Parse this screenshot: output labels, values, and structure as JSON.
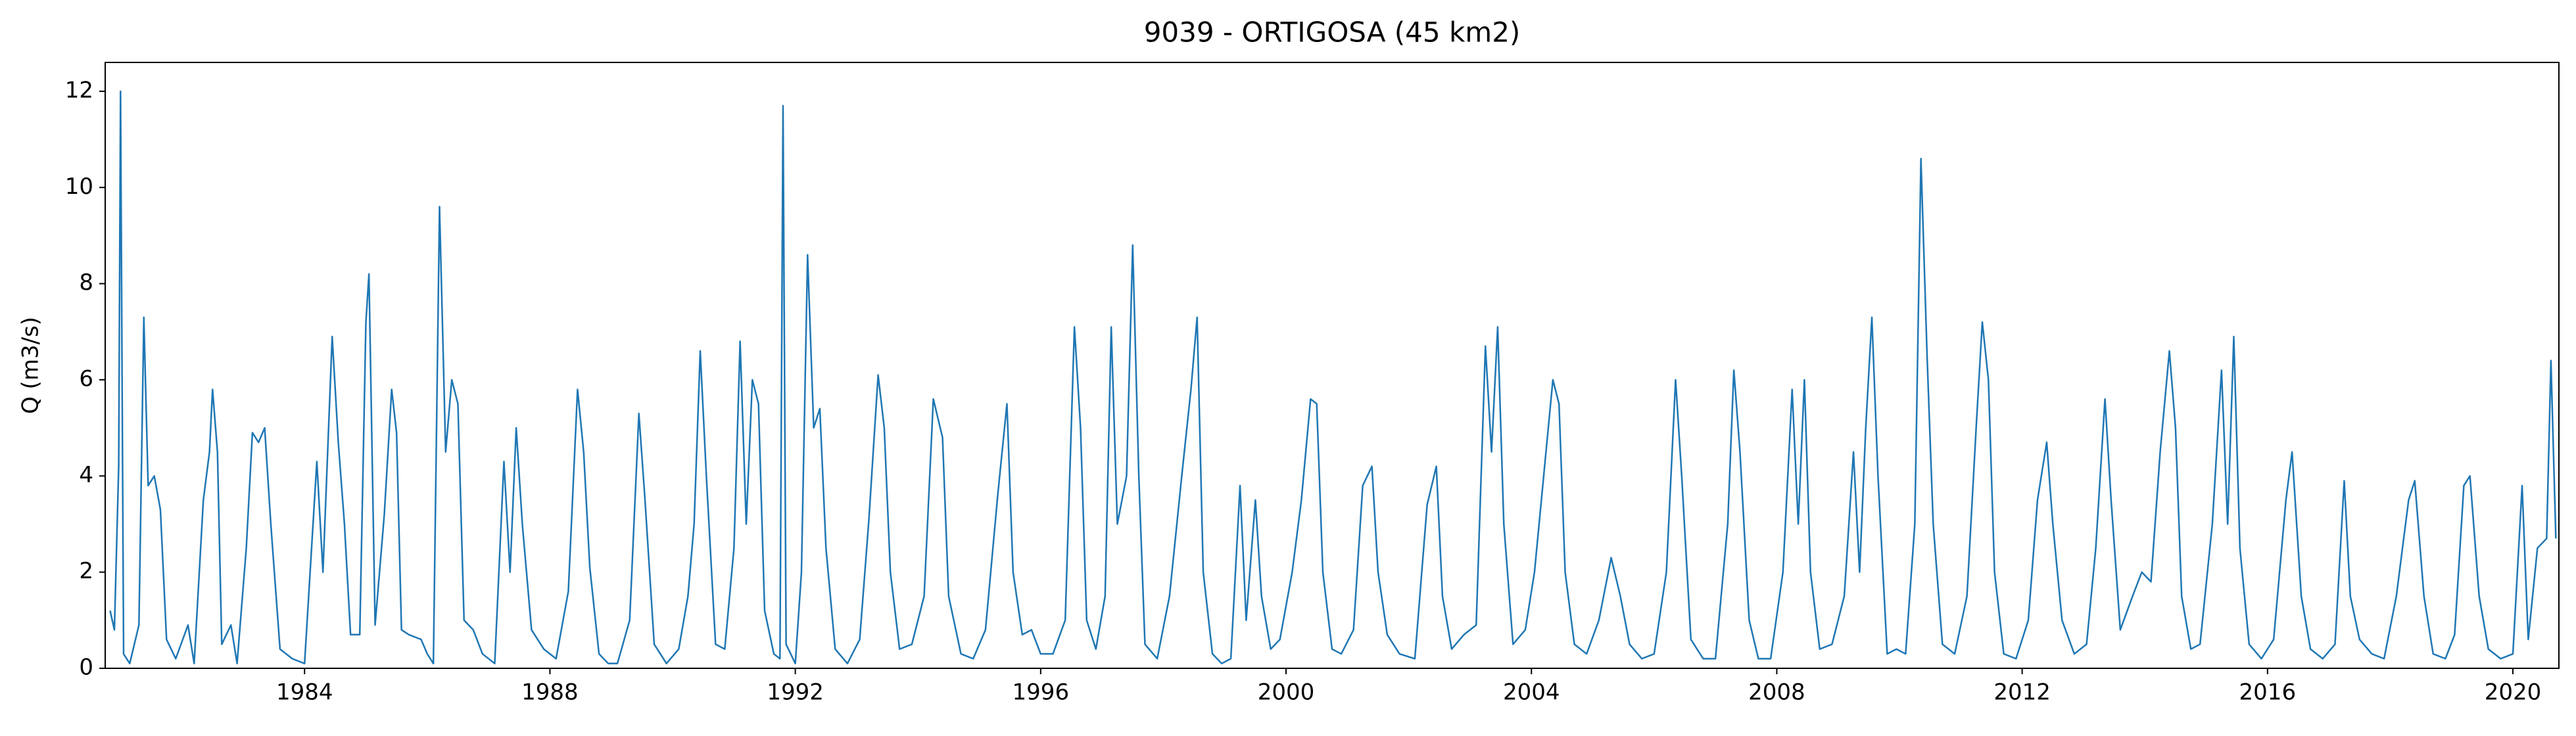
{
  "chart_data": {
    "type": "line",
    "title": "9039 - ORTIGOSA (45 km2)",
    "y_label": "Q (m3/s)",
    "color": "#1f77b4",
    "xlim": [
      1980.75,
      2020.75
    ],
    "xticks": [
      1984,
      1988,
      1992,
      1996,
      2000,
      2004,
      2008,
      2012,
      2016,
      2020
    ],
    "ylim": [
      0,
      12.6
    ],
    "yticks": [
      0,
      2,
      4,
      6,
      8,
      10,
      12
    ],
    "x": [
      1980.83,
      1980.9,
      1980.97,
      1981.0,
      1981.05,
      1981.15,
      1981.3,
      1981.38,
      1981.45,
      1981.55,
      1981.65,
      1981.75,
      1981.9,
      1982.1,
      1982.2,
      1982.35,
      1982.45,
      1982.5,
      1982.58,
      1982.65,
      1982.8,
      1982.9,
      1983.05,
      1983.15,
      1983.25,
      1983.35,
      1983.45,
      1983.6,
      1983.8,
      1984.0,
      1984.2,
      1984.3,
      1984.45,
      1984.55,
      1984.65,
      1984.75,
      1984.9,
      1985.0,
      1985.05,
      1985.15,
      1985.3,
      1985.42,
      1985.5,
      1985.58,
      1985.7,
      1985.9,
      1986.0,
      1986.1,
      1986.2,
      1986.3,
      1986.4,
      1986.5,
      1986.6,
      1986.75,
      1986.9,
      1987.1,
      1987.25,
      1987.35,
      1987.45,
      1987.55,
      1987.7,
      1987.9,
      1988.1,
      1988.3,
      1988.45,
      1988.55,
      1988.65,
      1988.8,
      1988.95,
      1989.1,
      1989.3,
      1989.45,
      1989.55,
      1989.7,
      1989.9,
      1990.1,
      1990.25,
      1990.35,
      1990.45,
      1990.55,
      1990.7,
      1990.85,
      1991.0,
      1991.1,
      1991.2,
      1991.3,
      1991.4,
      1991.5,
      1991.65,
      1991.75,
      1991.8,
      1991.85,
      1992.0,
      1992.1,
      1992.2,
      1992.3,
      1992.4,
      1992.5,
      1992.65,
      1992.85,
      1993.05,
      1993.2,
      1993.35,
      1993.45,
      1993.55,
      1993.7,
      1993.9,
      1994.1,
      1994.25,
      1994.4,
      1994.5,
      1994.7,
      1994.9,
      1995.1,
      1995.3,
      1995.45,
      1995.55,
      1995.7,
      1995.85,
      1996.0,
      1996.2,
      1996.4,
      1996.55,
      1996.65,
      1996.75,
      1996.9,
      1997.05,
      1997.15,
      1997.25,
      1997.4,
      1997.5,
      1997.6,
      1997.7,
      1997.9,
      1998.1,
      1998.3,
      1998.45,
      1998.55,
      1998.65,
      1998.8,
      1998.95,
      1999.1,
      1999.25,
      1999.35,
      1999.5,
      1999.6,
      1999.75,
      1999.9,
      2000.1,
      2000.25,
      2000.4,
      2000.5,
      2000.6,
      2000.75,
      2000.9,
      2001.1,
      2001.25,
      2001.4,
      2001.5,
      2001.65,
      2001.85,
      2002.1,
      2002.3,
      2002.45,
      2002.55,
      2002.7,
      2002.9,
      2003.1,
      2003.25,
      2003.35,
      2003.45,
      2003.55,
      2003.7,
      2003.9,
      2004.05,
      2004.2,
      2004.35,
      2004.45,
      2004.55,
      2004.7,
      2004.9,
      2005.1,
      2005.3,
      2005.45,
      2005.6,
      2005.8,
      2006.0,
      2006.2,
      2006.35,
      2006.45,
      2006.6,
      2006.8,
      2007.0,
      2007.2,
      2007.3,
      2007.4,
      2007.55,
      2007.7,
      2007.9,
      2008.1,
      2008.25,
      2008.35,
      2008.45,
      2008.55,
      2008.7,
      2008.9,
      2009.1,
      2009.25,
      2009.35,
      2009.45,
      2009.55,
      2009.65,
      2009.8,
      2009.95,
      2010.1,
      2010.25,
      2010.35,
      2010.45,
      2010.55,
      2010.7,
      2010.9,
      2011.1,
      2011.25,
      2011.35,
      2011.45,
      2011.55,
      2011.7,
      2011.9,
      2012.1,
      2012.25,
      2012.4,
      2012.5,
      2012.65,
      2012.85,
      2013.05,
      2013.2,
      2013.35,
      2013.45,
      2013.6,
      2013.8,
      2013.95,
      2014.1,
      2014.25,
      2014.4,
      2014.5,
      2014.6,
      2014.75,
      2014.9,
      2015.1,
      2015.25,
      2015.35,
      2015.45,
      2015.55,
      2015.7,
      2015.9,
      2016.1,
      2016.3,
      2016.4,
      2016.55,
      2016.7,
      2016.9,
      2017.1,
      2017.25,
      2017.35,
      2017.5,
      2017.7,
      2017.9,
      2018.1,
      2018.3,
      2018.4,
      2018.55,
      2018.7,
      2018.9,
      2019.05,
      2019.2,
      2019.3,
      2019.45,
      2019.6,
      2019.8,
      2020.0,
      2020.15,
      2020.25,
      2020.4,
      2020.55,
      2020.62,
      2020.7
    ],
    "values": [
      1.2,
      0.8,
      4.2,
      12.0,
      0.3,
      0.1,
      0.9,
      7.3,
      3.8,
      4.0,
      3.3,
      0.6,
      0.2,
      0.9,
      0.1,
      3.5,
      4.5,
      5.8,
      4.5,
      0.5,
      0.9,
      0.1,
      2.5,
      4.9,
      4.7,
      5.0,
      3.0,
      0.4,
      0.2,
      0.1,
      4.3,
      2.0,
      6.9,
      4.7,
      3.0,
      0.7,
      0.7,
      7.2,
      8.2,
      0.9,
      3.2,
      5.8,
      4.9,
      0.8,
      0.7,
      0.6,
      0.3,
      0.1,
      9.6,
      4.5,
      6.0,
      5.5,
      1.0,
      0.8,
      0.3,
      0.1,
      4.3,
      2.0,
      5.0,
      3.0,
      0.8,
      0.4,
      0.2,
      1.6,
      5.8,
      4.5,
      2.1,
      0.3,
      0.1,
      0.1,
      1.0,
      5.3,
      3.5,
      0.5,
      0.1,
      0.4,
      1.5,
      3.0,
      6.6,
      4.0,
      0.5,
      0.4,
      2.5,
      6.8,
      3.0,
      6.0,
      5.5,
      1.2,
      0.3,
      0.2,
      11.7,
      0.5,
      0.1,
      2.0,
      8.6,
      5.0,
      5.4,
      2.5,
      0.4,
      0.1,
      0.6,
      3.1,
      6.1,
      5.0,
      2.0,
      0.4,
      0.5,
      1.5,
      5.6,
      4.8,
      1.5,
      0.3,
      0.2,
      0.8,
      3.6,
      5.5,
      2.0,
      0.7,
      0.8,
      0.3,
      0.3,
      1.0,
      7.1,
      5.0,
      1.0,
      0.4,
      1.5,
      7.1,
      3.0,
      4.0,
      8.8,
      4.0,
      0.5,
      0.2,
      1.5,
      4.0,
      5.8,
      7.3,
      2.0,
      0.3,
      0.1,
      0.2,
      3.8,
      1.0,
      3.5,
      1.5,
      0.4,
      0.6,
      2.0,
      3.5,
      5.6,
      5.5,
      2.0,
      0.4,
      0.3,
      0.8,
      3.8,
      4.2,
      2.0,
      0.7,
      0.3,
      0.2,
      3.4,
      4.2,
      1.5,
      0.4,
      0.7,
      0.9,
      6.7,
      4.5,
      7.1,
      3.0,
      0.5,
      0.8,
      2.0,
      4.0,
      6.0,
      5.5,
      2.0,
      0.5,
      0.3,
      1.0,
      2.3,
      1.5,
      0.5,
      0.2,
      0.3,
      2.0,
      6.0,
      4.0,
      0.6,
      0.2,
      0.2,
      3.0,
      6.2,
      4.5,
      1.0,
      0.2,
      0.2,
      2.0,
      5.8,
      3.0,
      6.0,
      2.0,
      0.4,
      0.5,
      1.5,
      4.5,
      2.0,
      5.0,
      7.3,
      4.0,
      0.3,
      0.4,
      0.3,
      3.0,
      10.6,
      6.5,
      3.0,
      0.5,
      0.3,
      1.5,
      5.0,
      7.2,
      6.0,
      2.0,
      0.3,
      0.2,
      1.0,
      3.5,
      4.7,
      3.0,
      1.0,
      0.3,
      0.5,
      2.5,
      5.6,
      3.5,
      0.8,
      1.5,
      2.0,
      1.8,
      4.5,
      6.6,
      5.0,
      1.5,
      0.4,
      0.5,
      3.0,
      6.2,
      3.0,
      6.9,
      2.5,
      0.5,
      0.2,
      0.6,
      3.5,
      4.5,
      1.5,
      0.4,
      0.2,
      0.5,
      3.9,
      1.5,
      0.6,
      0.3,
      0.2,
      1.5,
      3.5,
      3.9,
      1.5,
      0.3,
      0.2,
      0.7,
      3.8,
      4.0,
      1.5,
      0.4,
      0.2,
      0.3,
      3.8,
      0.6,
      2.5,
      2.7,
      6.4,
      2.7
    ]
  }
}
